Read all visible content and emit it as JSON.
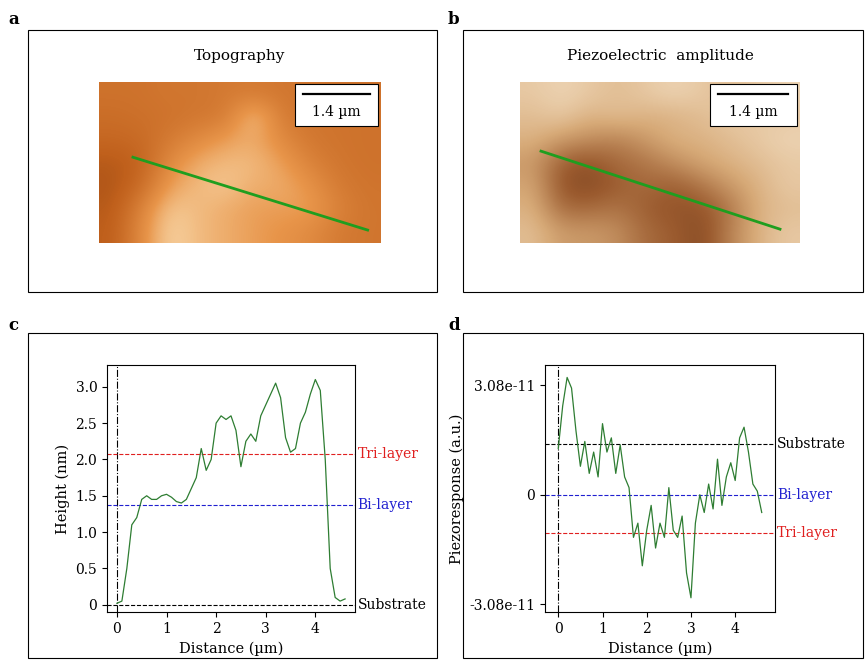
{
  "chart_data": [
    {
      "label": "a",
      "type": "image",
      "title": "Topography",
      "xlim": [
        0,
        5.9
      ],
      "ylim": [
        3.36,
        0
      ],
      "clim": [
        0,
        1
      ],
      "tick_labels": false,
      "cells": [
        [
          0.45,
          0.45,
          0.48,
          0.47,
          0.5,
          0.5,
          0.48,
          0.47,
          0.46,
          0.45
        ],
        [
          0.42,
          0.44,
          0.45,
          0.48,
          0.5,
          0.85,
          0.5,
          0.47,
          0.46,
          0.45
        ],
        [
          0.38,
          0.4,
          0.5,
          0.6,
          0.7,
          0.75,
          0.6,
          0.48,
          0.46,
          0.45
        ],
        [
          0.3,
          0.35,
          0.6,
          0.75,
          0.8,
          0.8,
          0.7,
          0.55,
          0.47,
          0.45
        ],
        [
          0.28,
          0.4,
          0.7,
          0.8,
          0.85,
          0.75,
          0.75,
          0.65,
          0.5,
          0.46
        ],
        [
          0.3,
          0.55,
          0.85,
          0.8,
          0.75,
          0.7,
          0.7,
          0.7,
          0.55,
          0.47
        ],
        [
          0.32,
          0.6,
          0.9,
          0.8,
          0.75,
          0.7,
          0.65,
          0.6,
          0.5,
          0.47
        ]
      ],
      "profile_line": {
        "start": [
          0.71,
          1.57
        ],
        "end": [
          5.62,
          3.09
        ],
        "color": "#1f9e1f"
      },
      "scale_bar": {
        "length": 1.4,
        "label": "1.4 µm"
      }
    },
    {
      "label": "b",
      "type": "image",
      "title": "Piezoelectric  amplitude",
      "xlim": [
        0,
        5.6
      ],
      "ylim": [
        3.26,
        0
      ],
      "clim": [
        0,
        1
      ],
      "tick_labels": false,
      "cells": [
        [
          0.8,
          0.85,
          0.8,
          0.75,
          0.8,
          0.85,
          0.8,
          0.75,
          0.8,
          0.85
        ],
        [
          0.75,
          0.8,
          0.7,
          0.75,
          0.7,
          0.7,
          0.75,
          0.8,
          0.8,
          0.8
        ],
        [
          0.7,
          0.6,
          0.55,
          0.5,
          0.6,
          0.7,
          0.7,
          0.75,
          0.8,
          0.85
        ],
        [
          0.6,
          0.35,
          0.3,
          0.4,
          0.45,
          0.55,
          0.65,
          0.7,
          0.75,
          0.8
        ],
        [
          0.65,
          0.3,
          0.25,
          0.35,
          0.4,
          0.35,
          0.45,
          0.6,
          0.7,
          0.8
        ],
        [
          0.7,
          0.4,
          0.4,
          0.45,
          0.35,
          0.3,
          0.3,
          0.45,
          0.7,
          0.75
        ],
        [
          0.75,
          0.6,
          0.6,
          0.55,
          0.4,
          0.35,
          0.25,
          0.5,
          0.7,
          0.8
        ]
      ],
      "profile_line": {
        "start": [
          0.42,
          1.4
        ],
        "end": [
          5.2,
          2.98
        ],
        "color": "#1f9e1f"
      },
      "scale_bar": {
        "length": 1.4,
        "label": "1.4 µm"
      }
    },
    {
      "label": "c",
      "type": "line",
      "x_label": "Distance (µm)",
      "y_label": "Height (nm)",
      "xlim": [
        -0.2,
        4.8
      ],
      "ylim": [
        -0.1,
        3.3
      ],
      "xticks": [
        0,
        1,
        2,
        3,
        4
      ],
      "yticks": [
        0,
        0.5,
        {
          "value": 1,
          "label": "1.0"
        },
        1.5,
        {
          "value": 2,
          "label": "2.0"
        },
        2.5,
        {
          "value": 3,
          "label": "3.0"
        }
      ],
      "x": [
        0,
        0.1,
        0.2,
        0.3,
        0.4,
        0.5,
        0.6,
        0.7,
        0.8,
        0.9,
        1.0,
        1.1,
        1.2,
        1.3,
        1.4,
        1.5,
        1.6,
        1.7,
        1.8,
        1.9,
        2.0,
        2.1,
        2.2,
        2.3,
        2.4,
        2.5,
        2.6,
        2.7,
        2.8,
        2.9,
        3.0,
        3.1,
        3.2,
        3.3,
        3.4,
        3.5,
        3.6,
        3.7,
        3.8,
        3.9,
        4.0,
        4.1,
        4.2,
        4.3,
        4.4,
        4.5,
        4.6
      ],
      "values": [
        0.02,
        0.05,
        0.5,
        1.1,
        1.2,
        1.45,
        1.5,
        1.45,
        1.45,
        1.5,
        1.52,
        1.48,
        1.42,
        1.4,
        1.45,
        1.6,
        1.75,
        2.15,
        1.85,
        2.0,
        2.5,
        2.6,
        2.55,
        2.6,
        2.4,
        1.9,
        2.25,
        2.35,
        2.25,
        2.6,
        2.75,
        2.9,
        3.05,
        2.85,
        2.3,
        2.1,
        2.15,
        2.5,
        2.65,
        2.9,
        3.1,
        2.95,
        2.0,
        0.5,
        0.1,
        0.05,
        0.08
      ],
      "color": "#2e7d32",
      "hlines": [
        {
          "name": "Tri-layer",
          "value": 2.08,
          "color": "#e02020"
        },
        {
          "name": "Bi-layer",
          "value": 1.37,
          "color": "#2020d0"
        },
        {
          "name": "Substrate",
          "value": 0,
          "color": "#000000"
        }
      ],
      "vlines": [
        0
      ]
    },
    {
      "label": "d",
      "type": "line",
      "x_label": "Distance (µm)",
      "y_label": "Piezoresponse (a.u.)",
      "xlim": [
        -0.3,
        4.9
      ],
      "ylim": [
        -3.3e-11,
        3.65e-11
      ],
      "xticks": [
        0,
        1,
        2,
        3,
        4
      ],
      "yticks": [
        {
          "value": -3.08e-11,
          "label": "-3.08e-11"
        },
        0,
        {
          "value": 3.08e-11,
          "label": "3.08e-11"
        }
      ],
      "x": [
        0,
        0.1,
        0.2,
        0.3,
        0.4,
        0.5,
        0.6,
        0.7,
        0.8,
        0.9,
        1.0,
        1.1,
        1.2,
        1.3,
        1.4,
        1.5,
        1.6,
        1.7,
        1.8,
        1.9,
        2.0,
        2.1,
        2.2,
        2.3,
        2.4,
        2.5,
        2.6,
        2.7,
        2.8,
        2.9,
        3.0,
        3.1,
        3.2,
        3.3,
        3.4,
        3.5,
        3.6,
        3.7,
        3.8,
        3.9,
        4.0,
        4.1,
        4.2,
        4.3,
        4.4,
        4.5,
        4.6
      ],
      "values": [
        1.3e-11,
        2.5e-11,
        3.3e-11,
        3e-11,
        1.8e-11,
        8e-12,
        1.5e-11,
        6e-12,
        1.2e-11,
        5e-12,
        2e-11,
        1.2e-11,
        1.6e-11,
        6e-12,
        1.4e-11,
        5e-12,
        2e-12,
        -1.2e-11,
        -8e-12,
        -2e-11,
        -1e-11,
        -3e-12,
        -1.5e-11,
        -8e-12,
        -1.2e-11,
        2e-12,
        -1e-11,
        -1.2e-11,
        -6e-12,
        -2.2e-11,
        -2.9e-11,
        -8e-12,
        0,
        -5e-12,
        3e-12,
        -4e-12,
        1e-11,
        -3e-12,
        5e-12,
        9e-12,
        4e-12,
        1.6e-11,
        1.9e-11,
        1.2e-11,
        3e-12,
        1e-12,
        -5e-12
      ],
      "color": "#2e7d32",
      "hlines": [
        {
          "name": "Substrate",
          "value": 1.42e-11,
          "color": "#000000"
        },
        {
          "name": "Bi-layer",
          "value": 0,
          "color": "#2020d0"
        },
        {
          "name": "Tri-layer",
          "value": -1.09e-11,
          "color": "#e02020"
        }
      ],
      "vlines": [
        0
      ]
    }
  ]
}
